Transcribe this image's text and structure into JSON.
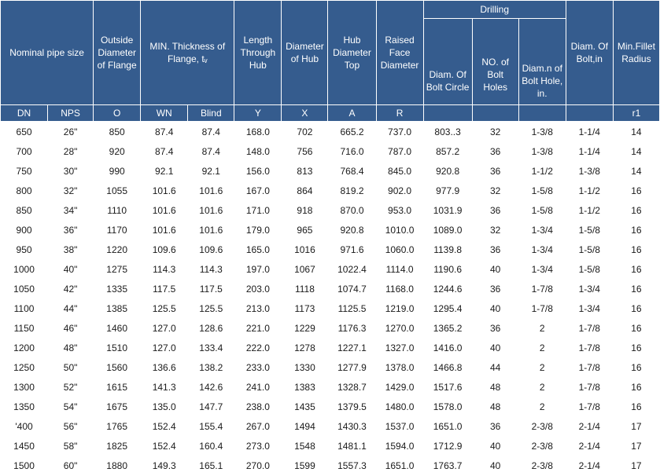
{
  "headers": {
    "nominal_pipe_size": "Nominal pipe size",
    "outside_diameter": "Outside Diameter of Flange",
    "min_thickness": "MIN. Thickness of Flange, tᵥ",
    "length_through_hub": "Length Through Hub",
    "diameter_of_hub": "Diameter of Hub",
    "hub_diameter_top": "Hub Diameter Top",
    "raised_face_diameter": "Raised Face Diameter",
    "drilling": "Drilling",
    "diam_bolt_circle": "Diam. Of Bolt Circle",
    "no_bolt_holes": "NO. of Bolt Holes",
    "diam_bolt_hole": "Diam.n of Bolt Hole, in.",
    "diam_of_bolt": "Diam. Of Bolt,in",
    "min_fillet_radius": "Min.Fillet Radius"
  },
  "subheaders": [
    "DN",
    "NPS",
    "O",
    "WN",
    "Blind",
    "Y",
    "X",
    "A",
    "R",
    "",
    "",
    "",
    "",
    "r1"
  ],
  "rows": [
    [
      "650",
      "26\"",
      "850",
      "87.4",
      "87.4",
      "168.0",
      "702",
      "665.2",
      "737.0",
      "803..3",
      "32",
      "1-3/8",
      "1-1/4",
      "14"
    ],
    [
      "700",
      "28\"",
      "920",
      "87.4",
      "87.4",
      "148.0",
      "756",
      "716.0",
      "787.0",
      "857.2",
      "36",
      "1-3/8",
      "1-1/4",
      "14"
    ],
    [
      "750",
      "30\"",
      "990",
      "92.1",
      "92.1",
      "156.0",
      "813",
      "768.4",
      "845.0",
      "920.8",
      "36",
      "1-1/2",
      "1-3/8",
      "14"
    ],
    [
      "800",
      "32\"",
      "1055",
      "101.6",
      "101.6",
      "167.0",
      "864",
      "819.2",
      "902.0",
      "977.9",
      "32",
      "1-5/8",
      "1-1/2",
      "16"
    ],
    [
      "850",
      "34\"",
      "1110",
      "101.6",
      "101.6",
      "171.0",
      "918",
      "870.0",
      "953.0",
      "1031.9",
      "36",
      "1-5/8",
      "1-1/2",
      "16"
    ],
    [
      "900",
      "36\"",
      "1170",
      "101.6",
      "101.6",
      "179.0",
      "965",
      "920.8",
      "1010.0",
      "1089.0",
      "32",
      "1-3/4",
      "1-5/8",
      "16"
    ],
    [
      "950",
      "38\"",
      "1220",
      "109.6",
      "109.6",
      "165.0",
      "1016",
      "971.6",
      "1060.0",
      "1139.8",
      "36",
      "1-3/4",
      "1-5/8",
      "16"
    ],
    [
      "1000",
      "40\"",
      "1275",
      "114.3",
      "114.3",
      "197.0",
      "1067",
      "1022.4",
      "1114.0",
      "1190.6",
      "40",
      "1-3/4",
      "1-5/8",
      "16"
    ],
    [
      "1050",
      "42\"",
      "1335",
      "117.5",
      "117.5",
      "203.0",
      "1118",
      "1074.7",
      "1168.0",
      "1244.6",
      "36",
      "1-7/8",
      "1-3/4",
      "16"
    ],
    [
      "1100",
      "44\"",
      "1385",
      "125.5",
      "125.5",
      "213.0",
      "1173",
      "1125.5",
      "1219.0",
      "1295.4",
      "40",
      "1-7/8",
      "1-3/4",
      "16"
    ],
    [
      "1150",
      "46\"",
      "1460",
      "127.0",
      "128.6",
      "221.0",
      "1229",
      "1176.3",
      "1270.0",
      "1365.2",
      "36",
      "2",
      "1-7/8",
      "16"
    ],
    [
      "1200",
      "48\"",
      "1510",
      "127.0",
      "133.4",
      "222.0",
      "1278",
      "1227.1",
      "1327.0",
      "1416.0",
      "40",
      "2",
      "1-7/8",
      "16"
    ],
    [
      "1250",
      "50\"",
      "1560",
      "136.6",
      "138.2",
      "233.0",
      "1330",
      "1277.9",
      "1378.0",
      "1466.8",
      "44",
      "2",
      "1-7/8",
      "16"
    ],
    [
      "1300",
      "52\"",
      "1615",
      "141.3",
      "142.6",
      "241.0",
      "1383",
      "1328.7",
      "1429.0",
      "1517.6",
      "48",
      "2",
      "1-7/8",
      "16"
    ],
    [
      "1350",
      "54\"",
      "1675",
      "135.0",
      "147.7",
      "238.0",
      "1435",
      "1379.5",
      "1480.0",
      "1578.0",
      "48",
      "2",
      "1-7/8",
      "16"
    ],
    [
      "'400",
      "56\"",
      "1765",
      "152.4",
      "155.4",
      "267.0",
      "1494",
      "1430.3",
      "1537.0",
      "1651.0",
      "36",
      "2-3/8",
      "2-1/4",
      "17"
    ],
    [
      "1450",
      "58\"",
      "1825",
      "152.4",
      "160.4",
      "273.0",
      "1548",
      "1481.1",
      "1594.0",
      "1712.9",
      "40",
      "2-3/8",
      "2-1/4",
      "17"
    ],
    [
      "1500",
      "60\"",
      "1880",
      "149.3",
      "165.1",
      "270.0",
      "1599",
      "1557.3",
      "1651.0",
      "1763.7",
      "40",
      "2-3/8",
      "2-1/4",
      "17"
    ]
  ]
}
